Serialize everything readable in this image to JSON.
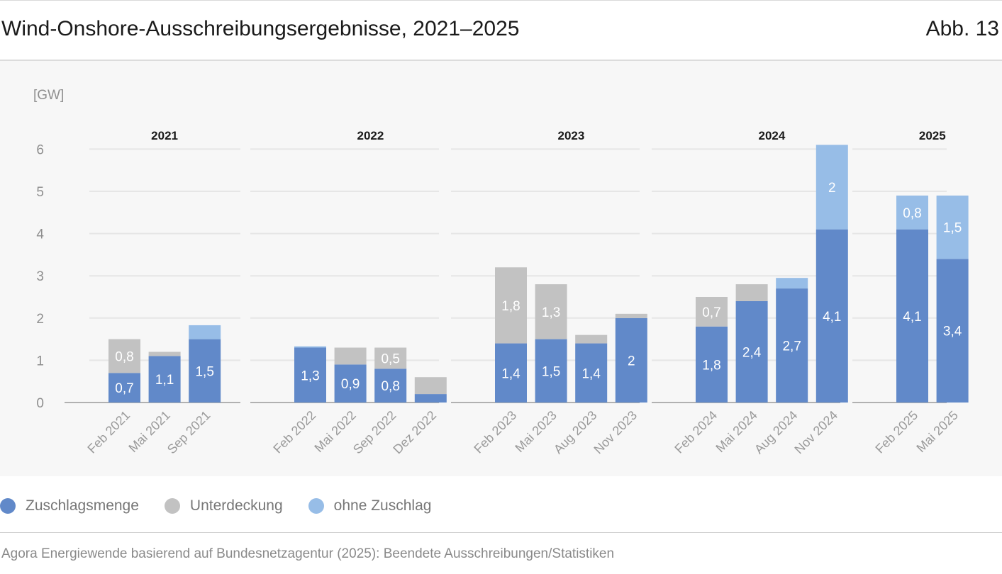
{
  "header": {
    "title": "Wind-Onshore-Ausschreibungsergebnisse, 2021–2025",
    "figure_number": "Abb. 13"
  },
  "colors": {
    "zuschlagsmenge": "#6189c9",
    "unterdeckung": "#c2c2c2",
    "ohne_zuschlag": "#97bde7",
    "background": "#f7f7f7"
  },
  "chart_data": {
    "type": "bar",
    "stacked": true,
    "unit": "[GW]",
    "ylim": [
      0,
      6
    ],
    "yticks": [
      "0",
      "1",
      "2",
      "3",
      "4",
      "5",
      "6"
    ],
    "grid": true,
    "legend_position": "bottom-left",
    "groups": [
      {
        "label": "2021",
        "categories": [
          "Feb 2021",
          "Mai 2021",
          "Sep 2021"
        ]
      },
      {
        "label": "2022",
        "categories": [
          "Feb 2022",
          "Mai 2022",
          "Sep 2022",
          "Dez 2022"
        ]
      },
      {
        "label": "2023",
        "categories": [
          "Feb 2023",
          "Mai 2023",
          "Aug 2023",
          "Nov 2023"
        ]
      },
      {
        "label": "2024",
        "categories": [
          "Feb 2024",
          "Mai 2024",
          "Aug 2024",
          "Nov 2024"
        ]
      },
      {
        "label": "2025",
        "categories": [
          "Feb 2025",
          "Mai 2025"
        ]
      }
    ],
    "series": [
      {
        "name": "Zuschlagsmenge",
        "color_key": "zuschlagsmenge",
        "values": [
          0.7,
          1.1,
          1.5,
          1.3,
          0.9,
          0.8,
          0.2,
          1.4,
          1.5,
          1.4,
          2.0,
          1.8,
          2.4,
          2.7,
          4.1,
          4.1,
          3.4
        ],
        "labels": [
          "0,7",
          "1,1",
          "1,5",
          "1,3",
          "0,9",
          "0,8",
          "",
          "1,4",
          "1,5",
          "1,4",
          "2",
          "1,8",
          "2,4",
          "2,7",
          "4,1",
          "4,1",
          "3,4"
        ]
      },
      {
        "name": "Unterdeckung",
        "color_key": "unterdeckung",
        "values": [
          0.8,
          0.1,
          0,
          0,
          0.4,
          0.5,
          0.4,
          1.8,
          1.3,
          0.2,
          0.1,
          0.7,
          0.4,
          0,
          0,
          0,
          0
        ],
        "labels": [
          "0,8",
          "",
          "",
          "",
          "",
          "0,5",
          "",
          "1,8",
          "1,3",
          "",
          "",
          "0,7",
          "",
          "",
          "",
          "",
          ""
        ]
      },
      {
        "name": "ohne Zuschlag",
        "color_key": "ohne_zuschlag",
        "values": [
          0,
          0,
          0.33,
          0.03,
          0,
          0,
          0,
          0,
          0,
          0,
          0,
          0,
          0,
          0.25,
          2.0,
          0.8,
          1.5
        ],
        "labels": [
          "",
          "",
          "",
          "",
          "",
          "",
          "",
          "",
          "",
          "",
          "",
          "",
          "",
          "",
          "2",
          "0,8",
          "1,5"
        ]
      }
    ]
  },
  "legend": [
    {
      "label": "Zuschlagsmenge",
      "color_key": "zuschlagsmenge"
    },
    {
      "label": "Unterdeckung",
      "color_key": "unterdeckung"
    },
    {
      "label": "ohne Zuschlag",
      "color_key": "ohne_zuschlag"
    }
  ],
  "footer": {
    "source": "Agora Energiewende basierend auf Bundesnetzagentur (2025): Beendete Ausschreibungen/Statistiken"
  }
}
